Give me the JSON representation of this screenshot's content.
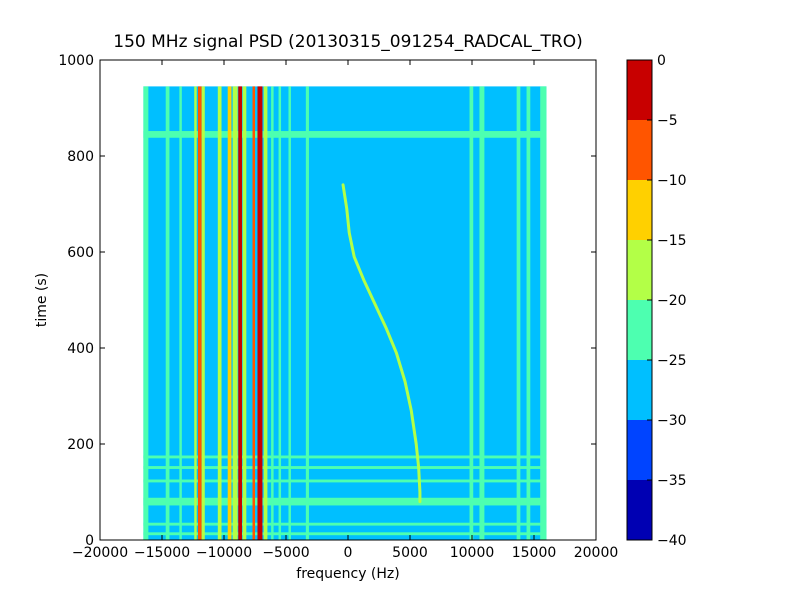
{
  "chart_data": {
    "type": "heatmap",
    "title": "150 MHz signal PSD (20130315_091254_RADCAL_TRO)",
    "xlabel": "frequency (Hz)",
    "ylabel": "time (s)",
    "xlim": [
      -20000,
      20000
    ],
    "ylim": [
      0,
      1000
    ],
    "xticks": [
      -20000,
      -15000,
      -10000,
      -5000,
      0,
      5000,
      10000,
      15000,
      20000
    ],
    "yticks": [
      0,
      200,
      400,
      600,
      800,
      1000
    ],
    "data_extent": {
      "x": [
        -16500,
        16000
      ],
      "y": [
        0,
        945
      ]
    },
    "grid": false,
    "colorbar": {
      "levels": [
        -40,
        -35,
        -30,
        -25,
        -20,
        -15,
        -10,
        -5,
        0
      ],
      "colors": [
        "#0000b3",
        "#0044ff",
        "#00bfff",
        "#4dffb0",
        "#b3ff47",
        "#ffd000",
        "#ff5500",
        "#c80000"
      ]
    },
    "background_level": -27.5,
    "vertical_bands": [
      {
        "x": [
          -16500,
          -16100
        ],
        "level": -22.5
      },
      {
        "x": [
          -14700,
          -14400
        ],
        "level": -22.5
      },
      {
        "x": [
          -13600,
          -13400
        ],
        "level": -22.5
      },
      {
        "x": [
          -12400,
          -12200
        ],
        "level": -17.5
      },
      {
        "x": [
          -12100,
          -11800
        ],
        "level": -7.5
      },
      {
        "x": [
          -11800,
          -11550
        ],
        "level": -17.5
      },
      {
        "x": [
          -10500,
          -10200
        ],
        "level": -17.5
      },
      {
        "x": [
          -9700,
          -9400
        ],
        "level": -12.5
      },
      {
        "x": [
          -9300,
          -8900
        ],
        "level": -17.5
      },
      {
        "x": [
          -8850,
          -8550
        ],
        "level": -2.5
      },
      {
        "x": [
          -8500,
          -8200
        ],
        "level": -17.5
      },
      {
        "x": [
          -7700,
          -7500
        ],
        "level": -7.5
      },
      {
        "x": [
          -7300,
          -6900
        ],
        "level": -2.5
      },
      {
        "x": [
          -6800,
          -6500
        ],
        "level": -17.5
      },
      {
        "x": [
          -6200,
          -6000
        ],
        "level": -22.5
      },
      {
        "x": [
          -5600,
          -5400
        ],
        "level": -22.5
      },
      {
        "x": [
          -4800,
          -4600
        ],
        "level": -22.5
      },
      {
        "x": [
          -3400,
          -3150
        ],
        "level": -22.5
      },
      {
        "x": [
          9800,
          10100
        ],
        "level": -22.5
      },
      {
        "x": [
          10600,
          11000
        ],
        "level": -22.5
      },
      {
        "x": [
          13600,
          13900
        ],
        "level": -22.5
      },
      {
        "x": [
          14400,
          14700
        ],
        "level": -22.5
      },
      {
        "x": [
          15500,
          16000
        ],
        "level": -22.5
      }
    ],
    "horizontal_bands": [
      {
        "y": [
          838,
          852
        ],
        "level": -22.5
      },
      {
        "y": [
          170,
          176
        ],
        "level": -22.5
      },
      {
        "y": [
          148,
          154
        ],
        "level": -22.5
      },
      {
        "y": [
          120,
          126
        ],
        "level": -22.5
      },
      {
        "y": [
          72,
          88
        ],
        "level": -22.5
      },
      {
        "y": [
          30,
          36
        ],
        "level": -22.5
      },
      {
        "y": [
          10,
          16
        ],
        "level": -22.5
      }
    ],
    "drift_trace": {
      "level": -17.5,
      "points": [
        [
          -400,
          740
        ],
        [
          -100,
          690
        ],
        [
          100,
          640
        ],
        [
          500,
          590
        ],
        [
          1300,
          540
        ],
        [
          2200,
          490
        ],
        [
          3100,
          440
        ],
        [
          3900,
          390
        ],
        [
          4600,
          330
        ],
        [
          5100,
          270
        ],
        [
          5500,
          200
        ],
        [
          5700,
          150
        ],
        [
          5800,
          100
        ],
        [
          5800,
          80
        ]
      ]
    }
  }
}
